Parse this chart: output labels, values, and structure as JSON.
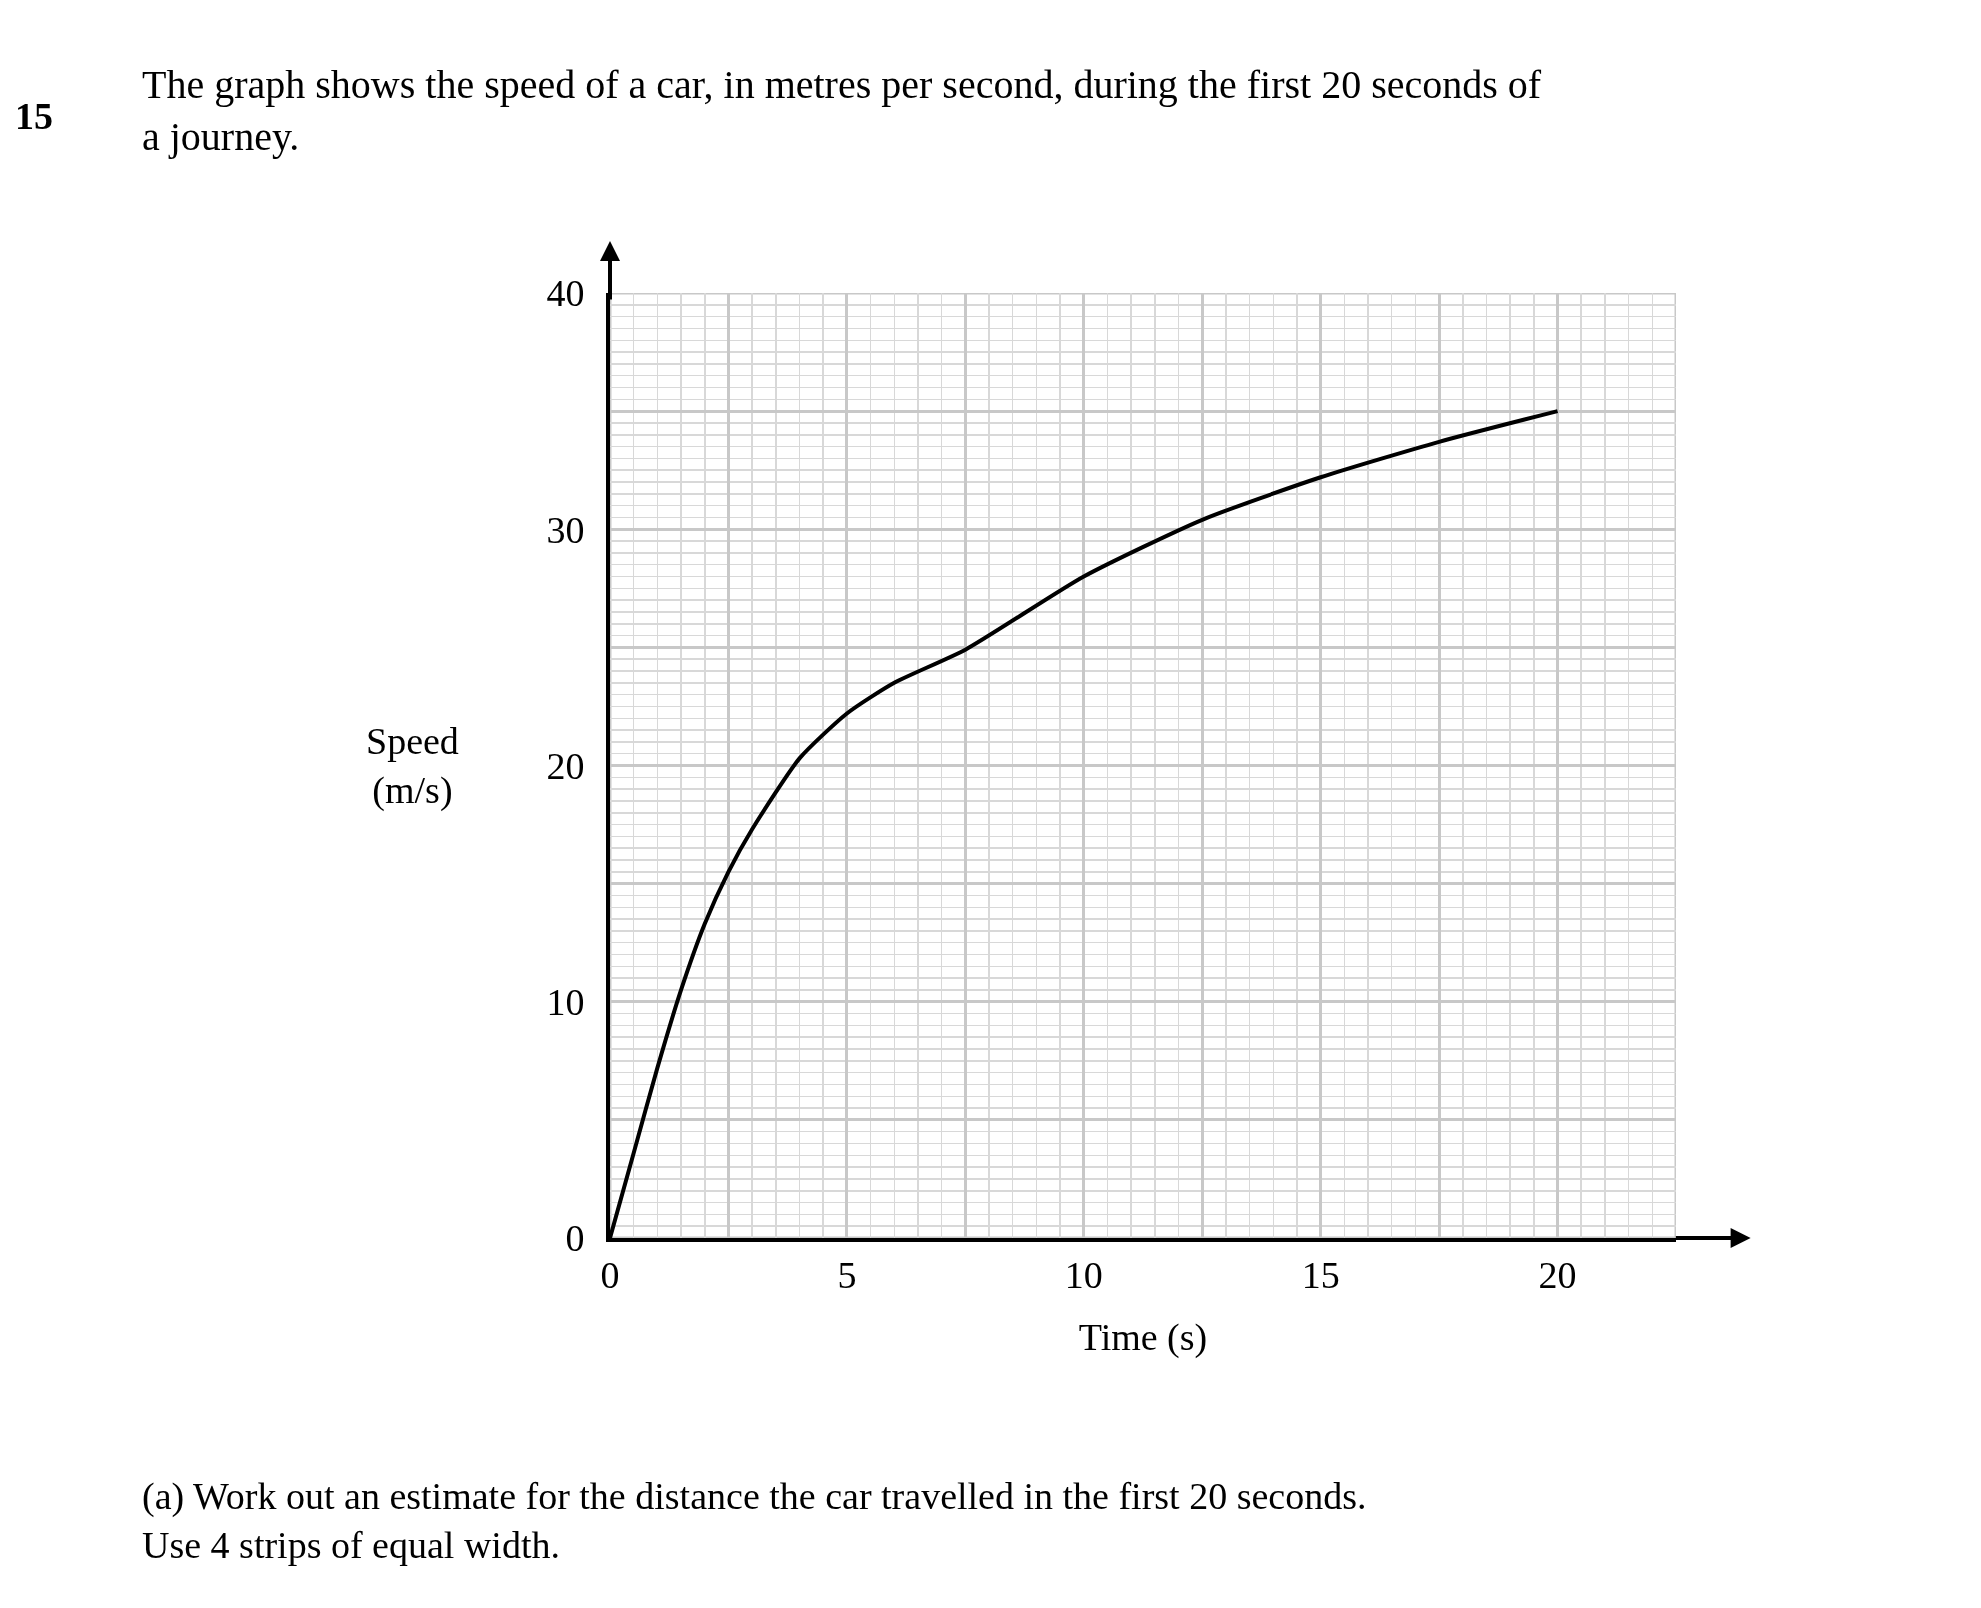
{
  "chart_data": {
    "type": "line",
    "title": "The graph shows the speed of a car, in metres per second, during the first 20 seconds of a journey.",
    "xlabel": "Time (s)",
    "ylabel": "Speed (m/s)",
    "x": [
      0,
      0.5,
      1,
      1.5,
      2,
      2.5,
      3,
      4,
      5,
      6,
      7.5,
      10,
      12.5,
      15,
      17.5,
      20
    ],
    "series": [
      {
        "color": "#000000",
        "values": [
          0,
          3.6,
          7.2,
          10.5,
          13.3,
          15.5,
          17.3,
          20.3,
          22.2,
          23.5,
          24.9,
          28,
          30.4,
          32.2,
          33.7,
          35
        ]
      }
    ],
    "xlim": [
      0,
      22.5
    ],
    "ylim": [
      0,
      40
    ],
    "xticks": [
      0,
      {
        "value": 2.5,
        "label": null
      },
      5,
      {
        "value": 7.5,
        "label": null
      },
      10,
      {
        "value": 12.5,
        "label": null
      },
      15,
      {
        "value": 17.5,
        "label": null
      },
      20,
      {
        "value": 22.5,
        "label": null
      }
    ],
    "yticks": [
      0,
      {
        "value": 5,
        "label": null
      },
      10,
      {
        "value": 15,
        "label": null
      },
      20,
      {
        "value": 25,
        "label": null
      },
      30,
      {
        "value": 35,
        "label": null
      },
      40
    ],
    "grid": true,
    "marker": "none",
    "line_style": "solid",
    "annotations": [
      "15",
      "(a) Work out an estimate for the distance the car travelled in the first 20 seconds. Use 4 strips of equal width."
    ]
  }
}
